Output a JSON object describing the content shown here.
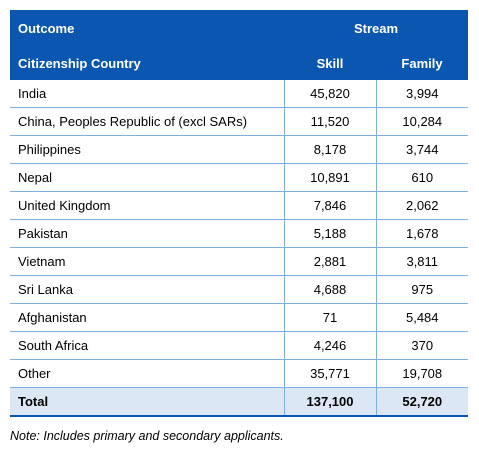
{
  "header": {
    "outcome_label": "Outcome",
    "stream_label": "Stream",
    "country_label": "Citizenship Country",
    "skill_label": "Skill",
    "family_label": "Family"
  },
  "rows": [
    {
      "country": "India",
      "skill": "45,820",
      "family": "3,994"
    },
    {
      "country": "China, Peoples Republic of (excl SARs)",
      "skill": "11,520",
      "family": "10,284"
    },
    {
      "country": "Philippines",
      "skill": "8,178",
      "family": "3,744"
    },
    {
      "country": "Nepal",
      "skill": "10,891",
      "family": "610"
    },
    {
      "country": "United Kingdom",
      "skill": "7,846",
      "family": "2,062"
    },
    {
      "country": "Pakistan",
      "skill": "5,188",
      "family": "1,678"
    },
    {
      "country": "Vietnam",
      "skill": "2,881",
      "family": "3,811"
    },
    {
      "country": "Sri Lanka",
      "skill": "4,688",
      "family": "975"
    },
    {
      "country": "Afghanistan",
      "skill": "71",
      "family": "5,484"
    },
    {
      "country": "South Africa",
      "skill": "4,246",
      "family": "370"
    },
    {
      "country": "Other",
      "skill": "35,771",
      "family": "19,708"
    }
  ],
  "total": {
    "label": "Total",
    "skill": "137,100",
    "family": "52,720"
  },
  "note": "Note: Includes primary and secondary applicants.",
  "colors": {
    "header_bg": "#0b57b0",
    "total_bg": "#dbe7f4",
    "grid_line": "#7fb0dc"
  }
}
